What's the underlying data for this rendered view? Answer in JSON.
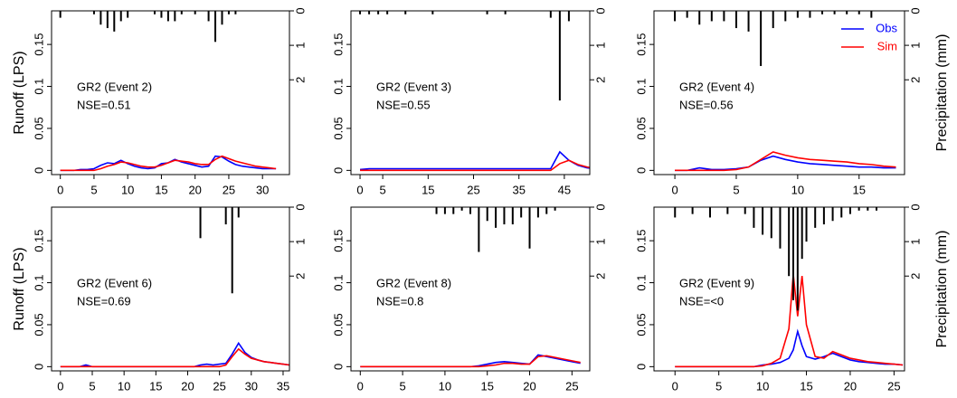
{
  "chart_data": [
    {
      "type": "line",
      "annotations": [
        "GR2 (Event 2)",
        "NSE=0.51"
      ],
      "ylabel": "Runoff (LPS)",
      "xlim": [
        -1.3,
        34
      ],
      "xticks": [
        0,
        5,
        10,
        15,
        20,
        25,
        30
      ],
      "ylim": [
        -0.005,
        0.19
      ],
      "yticks": [
        0,
        0.05,
        0.1,
        0.15
      ],
      "y2lim": [
        0,
        4.75
      ],
      "y2ticks": [
        0,
        1,
        2
      ],
      "y2_inverted": true,
      "x": [
        0,
        1,
        2,
        3,
        4,
        5,
        6,
        7,
        8,
        9,
        10,
        11,
        12,
        13,
        14,
        15,
        16,
        17,
        18,
        19,
        20,
        21,
        22,
        23,
        24,
        25,
        26,
        27,
        28,
        29,
        30,
        31,
        32
      ],
      "series": [
        {
          "color": "#0000ff",
          "values": [
            0,
            0,
            0,
            0.001,
            0.001,
            0.002,
            0.006,
            0.009,
            0.008,
            0.012,
            0.008,
            0.005,
            0.003,
            0.002,
            0.003,
            0.008,
            0.009,
            0.013,
            0.01,
            0.008,
            0.006,
            0.004,
            0.005,
            0.017,
            0.016,
            0.011,
            0.007,
            0.005,
            0.004,
            0.003,
            0.002,
            0.002,
            0.002
          ]
        },
        {
          "color": "#ff0000",
          "values": [
            0,
            0,
            0,
            0,
            0,
            0,
            0.002,
            0.005,
            0.007,
            0.01,
            0.009,
            0.007,
            0.005,
            0.004,
            0.004,
            0.006,
            0.009,
            0.012,
            0.011,
            0.01,
            0.008,
            0.007,
            0.007,
            0.013,
            0.017,
            0.014,
            0.011,
            0.009,
            0.007,
            0.005,
            0.004,
            0.003,
            0.002
          ]
        },
        {
          "type": "bar",
          "axis": "y2",
          "color": "#000000",
          "values": [
            0.2,
            0,
            0,
            0,
            0,
            0.1,
            0.4,
            0.5,
            0.6,
            0.3,
            0.2,
            0,
            0,
            0,
            0.1,
            0.2,
            0.3,
            0.3,
            0.1,
            0,
            0.1,
            0,
            0.3,
            0.9,
            0.4,
            0.1,
            0.1,
            0,
            0,
            0,
            0,
            0,
            0
          ]
        }
      ]
    },
    {
      "type": "line",
      "annotations": [
        "GR2 (Event 3)",
        "NSE=0.55"
      ],
      "xlim": [
        -2,
        50.6
      ],
      "xticks": [
        0,
        5,
        15,
        25,
        35,
        45
      ],
      "ylim": [
        -0.005,
        0.19
      ],
      "yticks": [
        0,
        0.05,
        0.1,
        0.15
      ],
      "y2lim": [
        0,
        4.75
      ],
      "y2ticks": [
        0,
        1,
        2
      ],
      "y2_inverted": true,
      "x": [
        0,
        2,
        4,
        6,
        8,
        10,
        12,
        14,
        16,
        18,
        20,
        22,
        24,
        26,
        28,
        30,
        32,
        34,
        36,
        38,
        40,
        42,
        44,
        46,
        48,
        50,
        52
      ],
      "series": [
        {
          "color": "#0000ff",
          "values": [
            0.001,
            0.002,
            0.002,
            0.002,
            0.002,
            0.002,
            0.002,
            0.002,
            0.002,
            0.002,
            0.002,
            0.002,
            0.002,
            0.002,
            0.002,
            0.002,
            0.002,
            0.002,
            0.002,
            0.002,
            0.002,
            0.002,
            0.022,
            0.012,
            0.006,
            0.003,
            0.002
          ]
        },
        {
          "color": "#ff0000",
          "values": [
            0,
            0,
            0,
            0,
            0,
            0,
            0,
            0,
            0,
            0,
            0,
            0,
            0,
            0,
            0,
            0,
            0,
            0,
            0,
            0,
            0,
            0,
            0.008,
            0.012,
            0.007,
            0.004,
            0.002
          ]
        },
        {
          "type": "bar",
          "axis": "y2",
          "color": "#000000",
          "values": [
            0.1,
            0.1,
            0.1,
            0.1,
            0,
            0.1,
            0,
            0,
            0.1,
            0,
            0,
            0,
            0,
            0,
            0.1,
            0,
            0.1,
            0,
            0,
            0,
            0,
            0.2,
            2.6,
            0.3,
            0,
            0,
            0
          ]
        }
      ]
    },
    {
      "type": "line",
      "annotations": [
        "GR2 (Event 4)",
        "NSE=0.56"
      ],
      "y2label": "Precipitation (mm)",
      "legend": "upper right",
      "xlim": [
        -1.7,
        18.7
      ],
      "xticks": [
        0,
        5,
        10,
        15
      ],
      "ylim": [
        -0.005,
        0.19
      ],
      "yticks": [
        0,
        0.05,
        0.1,
        0.15
      ],
      "y2lim": [
        0,
        4.75
      ],
      "y2ticks": [
        0,
        1,
        2
      ],
      "y2_inverted": true,
      "x": [
        0,
        1,
        2,
        3,
        4,
        5,
        6,
        7,
        8,
        9,
        10,
        11,
        12,
        13,
        14,
        15,
        16,
        17,
        18
      ],
      "series": [
        {
          "name": "Obs",
          "color": "#0000ff",
          "values": [
            0,
            0,
            0.003,
            0.001,
            0.001,
            0.002,
            0.004,
            0.012,
            0.017,
            0.013,
            0.01,
            0.008,
            0.007,
            0.006,
            0.005,
            0.004,
            0.004,
            0.003,
            0.003
          ]
        },
        {
          "name": "Sim",
          "color": "#ff0000",
          "values": [
            0,
            0,
            0,
            0,
            0,
            0.001,
            0.004,
            0.013,
            0.022,
            0.018,
            0.015,
            0.013,
            0.012,
            0.011,
            0.01,
            0.008,
            0.007,
            0.005,
            0.004
          ]
        },
        {
          "type": "bar",
          "axis": "y2",
          "color": "#000000",
          "values": [
            0.3,
            0.2,
            0.4,
            0.3,
            0.3,
            0.5,
            0.6,
            1.6,
            0.5,
            0.3,
            0.2,
            0.2,
            0.1,
            0.1,
            0.1,
            0.1,
            0.2,
            0,
            0
          ]
        }
      ]
    },
    {
      "type": "line",
      "annotations": [
        "GR2 (Event 6)",
        "NSE=0.69"
      ],
      "ylabel": "Runoff (LPS)",
      "xlim": [
        -1.4,
        36
      ],
      "xticks": [
        0,
        5,
        10,
        15,
        20,
        25,
        30,
        35
      ],
      "ylim": [
        -0.005,
        0.19
      ],
      "yticks": [
        0,
        0.05,
        0.1,
        0.15
      ],
      "y2lim": [
        0,
        4.75
      ],
      "y2ticks": [
        0,
        1,
        2
      ],
      "y2_inverted": true,
      "x": [
        0,
        1,
        2,
        3,
        4,
        5,
        6,
        7,
        8,
        9,
        10,
        11,
        12,
        13,
        14,
        15,
        16,
        17,
        18,
        19,
        20,
        21,
        22,
        23,
        24,
        25,
        26,
        27,
        28,
        29,
        30,
        31,
        32,
        33,
        34,
        35,
        36
      ],
      "series": [
        {
          "color": "#0000ff",
          "values": [
            0,
            0,
            0,
            0,
            0.002,
            0,
            0,
            0,
            0,
            0,
            0,
            0,
            0,
            0,
            0,
            0,
            0,
            0,
            0,
            0,
            0,
            0,
            0.002,
            0.003,
            0.002,
            0.003,
            0.004,
            0.015,
            0.028,
            0.017,
            0.011,
            0.008,
            0.006,
            0.005,
            0.004,
            0.003,
            0.002
          ]
        },
        {
          "color": "#ff0000",
          "values": [
            0,
            0,
            0,
            0,
            0,
            0,
            0,
            0,
            0,
            0,
            0,
            0,
            0,
            0,
            0,
            0,
            0,
            0,
            0,
            0,
            0,
            0,
            0,
            0,
            0,
            0,
            0.002,
            0.012,
            0.021,
            0.015,
            0.01,
            0.008,
            0.006,
            0.005,
            0.004,
            0.003,
            0.002
          ]
        },
        {
          "type": "bar",
          "axis": "y2",
          "color": "#000000",
          "values": [
            0,
            0,
            0,
            0,
            0,
            0,
            0,
            0,
            0,
            0,
            0,
            0,
            0,
            0,
            0,
            0,
            0,
            0,
            0,
            0,
            0,
            0,
            0.9,
            0,
            0,
            0,
            0.5,
            2.5,
            0.3,
            0,
            0,
            0,
            0,
            0,
            0,
            0,
            0
          ]
        }
      ]
    },
    {
      "type": "line",
      "annotations": [
        "GR2 (Event 8)",
        "NSE=0.8"
      ],
      "xlim": [
        -1.1,
        27.1
      ],
      "xticks": [
        0,
        5,
        10,
        15,
        20,
        25
      ],
      "ylim": [
        -0.005,
        0.19
      ],
      "yticks": [
        0,
        0.05,
        0.1,
        0.15
      ],
      "y2lim": [
        0,
        4.75
      ],
      "y2ticks": [
        0,
        1,
        2
      ],
      "y2_inverted": true,
      "x": [
        0,
        1,
        2,
        3,
        4,
        5,
        6,
        7,
        8,
        9,
        10,
        11,
        12,
        13,
        14,
        15,
        16,
        17,
        18,
        19,
        20,
        21,
        22,
        23,
        24,
        25,
        26
      ],
      "series": [
        {
          "color": "#0000ff",
          "values": [
            0,
            0,
            0,
            0,
            0,
            0,
            0,
            0,
            0,
            0,
            0,
            0,
            0,
            0,
            0.001,
            0.003,
            0.005,
            0.006,
            0.005,
            0.004,
            0.003,
            0.014,
            0.012,
            0.01,
            0.008,
            0.006,
            0.004
          ]
        },
        {
          "color": "#ff0000",
          "values": [
            0,
            0,
            0,
            0,
            0,
            0,
            0,
            0,
            0,
            0,
            0,
            0,
            0,
            0,
            0,
            0.001,
            0.002,
            0.004,
            0.004,
            0.003,
            0.003,
            0.012,
            0.013,
            0.011,
            0.009,
            0.007,
            0.005
          ]
        },
        {
          "type": "bar",
          "axis": "y2",
          "color": "#000000",
          "values": [
            0,
            0,
            0,
            0,
            0,
            0,
            0,
            0,
            0,
            0.2,
            0.2,
            0.2,
            0.1,
            0.2,
            1.3,
            0.4,
            0.6,
            0.5,
            0.5,
            0.3,
            1.2,
            0.3,
            0.2,
            0.1,
            0,
            0,
            0
          ]
        }
      ]
    },
    {
      "type": "line",
      "annotations": [
        "GR2 (Event 9)",
        "NSE=<0"
      ],
      "y2label": "Precipitation (mm)",
      "xlim": [
        -2.4,
        26.2
      ],
      "xticks": [
        0,
        5,
        10,
        15,
        20,
        25
      ],
      "ylim": [
        -0.005,
        0.19
      ],
      "yticks": [
        0,
        0.05,
        0.1,
        0.15
      ],
      "y2lim": [
        0,
        4.75
      ],
      "y2ticks": [
        0,
        1,
        2
      ],
      "y2_inverted": true,
      "x": [
        0,
        2,
        4,
        6,
        8,
        9,
        10,
        11,
        12,
        13,
        13.5,
        14,
        14.5,
        15,
        16,
        17,
        18,
        19,
        20,
        21,
        22,
        23,
        24,
        25,
        26
      ],
      "series": [
        {
          "color": "#0000ff",
          "values": [
            0,
            0,
            0,
            0,
            0,
            0,
            0.002,
            0.003,
            0.005,
            0.01,
            0.02,
            0.042,
            0.025,
            0.012,
            0.009,
            0.012,
            0.016,
            0.012,
            0.008,
            0.006,
            0.005,
            0.004,
            0.003,
            0.003,
            0.002
          ]
        },
        {
          "color": "#ff0000",
          "values": [
            0,
            0,
            0,
            0,
            0,
            0,
            0.001,
            0.004,
            0.01,
            0.045,
            0.11,
            0.06,
            0.108,
            0.05,
            0.012,
            0.01,
            0.018,
            0.014,
            0.01,
            0.008,
            0.006,
            0.005,
            0.004,
            0.003,
            0.002
          ]
        },
        {
          "type": "bar",
          "axis": "y2",
          "color": "#000000",
          "values": [
            0.3,
            0.2,
            0.3,
            0.2,
            0.2,
            0.6,
            0.8,
            0.9,
            1.2,
            2.0,
            2.7,
            3.0,
            1.5,
            1.0,
            0.6,
            0.5,
            0.4,
            0.3,
            0.2,
            0.1,
            0.1,
            0.1,
            0,
            0,
            0
          ]
        }
      ]
    }
  ]
}
